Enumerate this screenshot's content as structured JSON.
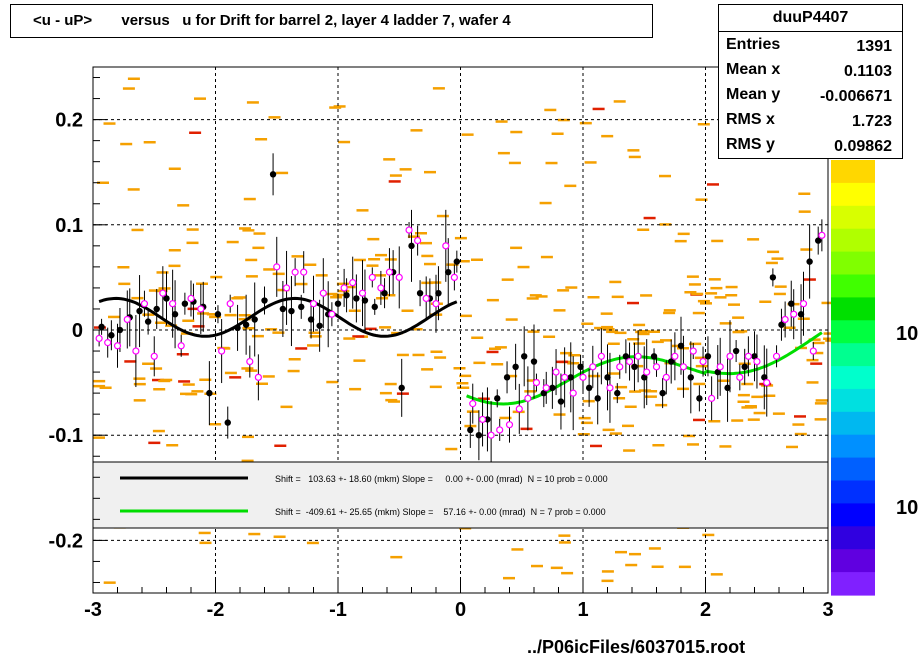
{
  "title": "<u - uP>       versus   u for Drift for barrel 2, layer 4 ladder 7, wafer 4",
  "stats": {
    "name": "duuP4407",
    "rows": [
      {
        "key": "Entries",
        "value": "1391"
      },
      {
        "key": "Mean x",
        "value": "0.1103"
      },
      {
        "key": "Mean y",
        "value": "-0.006671"
      },
      {
        "key": "RMS x",
        "value": "1.723"
      },
      {
        "key": "RMS y",
        "value": "0.09862"
      }
    ]
  },
  "footer": "../P06icFiles/6037015.root",
  "colors": {
    "black_series": "#000000",
    "green_series": "#00dd00",
    "open_markers": "#ff00ff",
    "hist_cells": "#f5a000",
    "hist_cells_red": "#e02000",
    "legend_bg": "#f0f0f0"
  },
  "chart_data": {
    "type": "scatter",
    "title": "<u - uP>       versus   u for Drift for barrel 2, layer 4 ladder 7, wafer 4",
    "xlabel": "",
    "ylabel": "",
    "xlim": [
      -3,
      3
    ],
    "ylim": [
      -0.25,
      0.25
    ],
    "x_ticks": [
      "-3",
      "-2",
      "-1",
      "0",
      "1",
      "2",
      "3"
    ],
    "y_ticks": [
      "0.2",
      "0.1",
      "0",
      "-0.1",
      "-0.2"
    ],
    "grid": true,
    "colorbar_labels": [
      "10",
      "10"
    ],
    "legend": [
      {
        "text": "Shift =   103.63 +- 18.60 (mkm) Slope =     0.00 +- 0.00 (mrad)  N = 10 prob = 0.000",
        "color": "#000000"
      },
      {
        "text": "Shift =  -409.61 +- 25.65 (mkm) Slope =    57.16 +- 0.00 (mrad)  N = 7 prob = 0.000",
        "color": "#00dd00"
      }
    ],
    "series": [
      {
        "marker": "filled-black",
        "x": [
          -2.93,
          -2.85,
          -2.78,
          -2.7,
          -2.62,
          -2.55,
          -2.48,
          -2.4,
          -2.33,
          -2.25,
          -2.18,
          -2.1,
          -2.05,
          -1.98,
          -1.9,
          -1.82,
          -1.75,
          -1.68,
          -1.6,
          -1.53,
          -1.45,
          -1.38,
          -1.3,
          -1.22,
          -1.15,
          -1.08,
          -1.0,
          -0.93,
          -0.85,
          -0.78,
          -0.7,
          -0.62,
          -0.55,
          -0.48,
          -0.4,
          -0.33,
          -0.25,
          -0.18,
          -0.1,
          -0.03,
          0.08,
          0.15,
          0.22,
          0.3,
          0.38,
          0.45,
          0.52,
          0.6,
          0.68,
          0.75,
          0.82,
          0.9,
          0.98,
          1.05,
          1.12,
          1.2,
          1.28,
          1.35,
          1.42,
          1.5,
          1.58,
          1.65,
          1.72,
          1.8,
          1.88,
          1.95,
          2.02,
          2.1,
          2.18,
          2.25,
          2.32,
          2.4,
          2.48,
          2.55,
          2.62,
          2.7,
          2.78,
          2.85,
          2.92
        ],
        "y": [
          0.003,
          -0.005,
          0.0,
          0.012,
          0.018,
          0.008,
          0.02,
          0.03,
          0.015,
          0.025,
          0.027,
          0.022,
          -0.06,
          0.015,
          -0.088,
          0.002,
          0.005,
          0.01,
          0.028,
          0.148,
          0.02,
          0.018,
          0.022,
          0.01,
          0.004,
          0.015,
          0.025,
          0.033,
          0.03,
          0.028,
          0.022,
          0.035,
          0.055,
          -0.055,
          0.08,
          0.035,
          0.03,
          0.035,
          0.055,
          0.065,
          -0.095,
          -0.1,
          -0.085,
          -0.065,
          -0.045,
          -0.035,
          -0.025,
          -0.03,
          -0.06,
          -0.055,
          -0.068,
          -0.045,
          -0.035,
          -0.055,
          -0.065,
          -0.045,
          -0.06,
          -0.025,
          -0.035,
          -0.045,
          -0.025,
          -0.06,
          -0.03,
          -0.015,
          -0.045,
          -0.065,
          -0.025,
          -0.04,
          -0.055,
          -0.02,
          -0.035,
          -0.025,
          -0.045,
          0.05,
          0.005,
          0.025,
          0.015,
          0.065,
          0.085
        ]
      },
      {
        "marker": "open-magenta",
        "x": [
          -2.95,
          -2.88,
          -2.8,
          -2.72,
          -2.65,
          -2.58,
          -2.5,
          -2.43,
          -2.35,
          -2.28,
          -2.2,
          -2.12,
          -1.95,
          -1.88,
          -1.72,
          -1.65,
          -1.5,
          -1.42,
          -1.35,
          -1.28,
          -1.2,
          -1.12,
          -1.05,
          -0.95,
          -0.88,
          -0.8,
          -0.72,
          -0.65,
          -0.58,
          -0.5,
          -0.42,
          -0.35,
          -0.28,
          -0.2,
          -0.12,
          -0.05,
          0.1,
          0.18,
          0.25,
          0.32,
          0.4,
          0.48,
          0.55,
          0.62,
          0.7,
          0.78,
          0.85,
          0.92,
          1.0,
          1.08,
          1.15,
          1.22,
          1.3,
          1.38,
          1.45,
          1.52,
          1.6,
          1.68,
          1.75,
          1.82,
          1.9,
          1.98,
          2.05,
          2.12,
          2.2,
          2.28,
          2.35,
          2.42,
          2.5,
          2.58,
          2.65,
          2.72,
          2.8,
          2.88,
          2.95
        ],
        "y": [
          -0.008,
          -0.012,
          -0.015,
          0.01,
          -0.02,
          0.025,
          -0.025,
          0.035,
          0.025,
          -0.015,
          0.03,
          0.02,
          -0.02,
          0.025,
          -0.03,
          -0.045,
          0.06,
          0.04,
          0.055,
          0.055,
          0.025,
          0.035,
          0.015,
          0.04,
          0.045,
          0.035,
          0.05,
          0.04,
          0.055,
          0.05,
          0.095,
          0.085,
          0.03,
          0.025,
          0.08,
          0.05,
          -0.07,
          -0.085,
          -0.1,
          -0.095,
          -0.09,
          -0.075,
          -0.065,
          -0.05,
          -0.055,
          -0.04,
          -0.045,
          -0.06,
          -0.045,
          -0.035,
          -0.025,
          -0.055,
          -0.035,
          -0.03,
          -0.025,
          -0.04,
          -0.035,
          -0.045,
          -0.025,
          -0.035,
          -0.02,
          -0.03,
          -0.065,
          -0.035,
          -0.025,
          -0.045,
          -0.025,
          -0.03,
          -0.05,
          -0.025,
          0.01,
          0.015,
          0.025,
          -0.02,
          0.09
        ]
      }
    ]
  }
}
